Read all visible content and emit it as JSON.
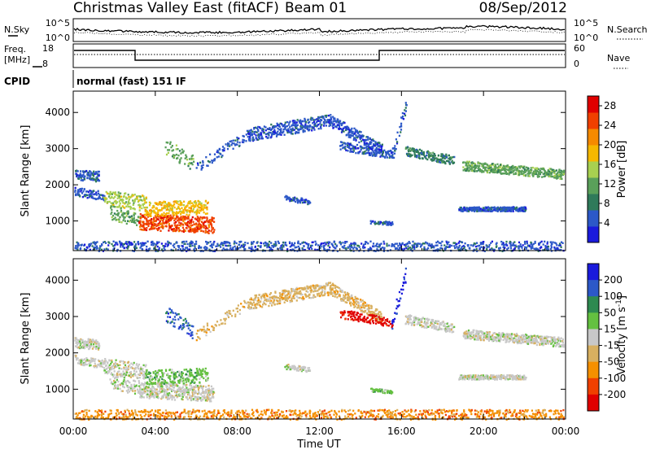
{
  "header": {
    "title": "Christmas Valley East (fitACF)",
    "beam": "Beam 01",
    "date": "08/Sep/2012"
  },
  "top_panel": {
    "left_label": "N.Sky",
    "right_label": "N.Search",
    "left_ticks": [
      "10^5",
      "10^0"
    ],
    "right_ticks": [
      "10^5",
      "10^0"
    ]
  },
  "freq_panel": {
    "left_label_1": "Freq.",
    "left_label_2": "[MHz]",
    "left_ticks": [
      "18",
      "8"
    ],
    "right_label": "Nave",
    "right_ticks": [
      "60",
      "0"
    ]
  },
  "cpid_panel": {
    "label": "CPID",
    "mode_text": "normal (fast) 151 IF"
  },
  "colors": {
    "power_scale": [
      "#1a1adc",
      "#2c58c8",
      "#2f7a5a",
      "#5aa05a",
      "#a8d050",
      "#f5b800",
      "#f58a00",
      "#f04000",
      "#e00000"
    ],
    "velocity_scale": [
      "#1a1adc",
      "#2c58c8",
      "#2e8a50",
      "#64c040",
      "#c8c8c8",
      "#d8b060",
      "#f59000",
      "#f04000",
      "#e00000"
    ]
  },
  "chart_data": [
    {
      "type": "heatmap",
      "panel": "power",
      "xlabel": "",
      "ylabel": "Slant Range [km]",
      "x_ticks": [
        "00:00",
        "04:00",
        "08:00",
        "12:00",
        "16:00",
        "20:00",
        "00:00"
      ],
      "y_ticks": [
        1000,
        2000,
        3000,
        4000
      ],
      "ylim": [
        180,
        4590
      ],
      "colorbar": {
        "label": "Power [dB]",
        "ticks": [
          4,
          8,
          12,
          16,
          20,
          24,
          28
        ],
        "range": [
          0,
          30
        ]
      }
    },
    {
      "type": "heatmap",
      "panel": "velocity",
      "xlabel": "Time UT",
      "ylabel": "Slant Range [km]",
      "x_ticks": [
        "00:00",
        "04:00",
        "08:00",
        "12:00",
        "16:00",
        "20:00",
        "00:00"
      ],
      "y_ticks": [
        1000,
        2000,
        3000,
        4000
      ],
      "ylim": [
        180,
        4590
      ],
      "colorbar": {
        "label": "Velocity [m s^-1]",
        "ticks": [
          200,
          100,
          50,
          15,
          -15,
          -50,
          -100,
          -200
        ],
        "range": [
          -250,
          250
        ]
      }
    }
  ]
}
